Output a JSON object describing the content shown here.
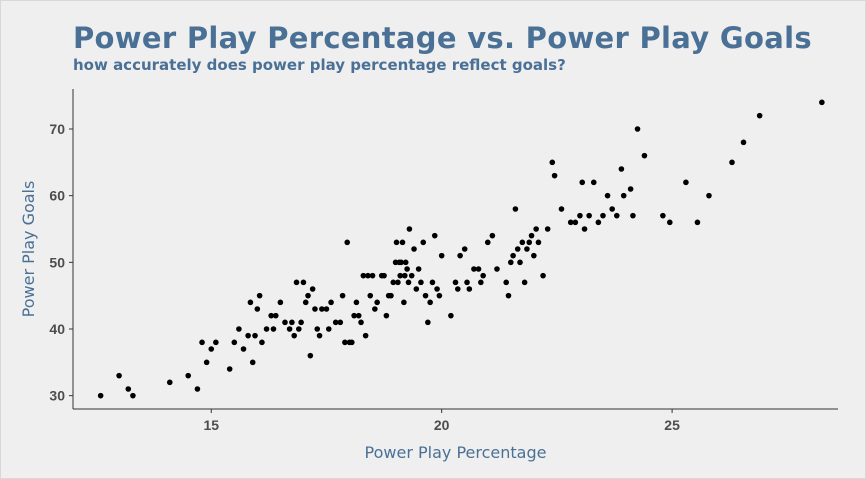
{
  "chart_data": {
    "type": "scatter",
    "title": "Power Play Percentage vs. Power Play Goals",
    "subtitle": "how accurately does power play percentage reflect goals?",
    "xlabel": "Power Play Percentage",
    "ylabel": "Power Play Goals",
    "xlim": [
      12.0,
      28.6
    ],
    "ylim": [
      28.0,
      76.0
    ],
    "xticks": [
      15,
      20,
      25
    ],
    "yticks": [
      30,
      40,
      50,
      60,
      70
    ],
    "grid": false,
    "point_color": "#000000",
    "points": [
      [
        12.6,
        30
      ],
      [
        13.0,
        33
      ],
      [
        13.2,
        31
      ],
      [
        13.3,
        30
      ],
      [
        14.1,
        32
      ],
      [
        14.5,
        33
      ],
      [
        14.7,
        31
      ],
      [
        14.8,
        38
      ],
      [
        14.9,
        35
      ],
      [
        15.0,
        37
      ],
      [
        15.1,
        38
      ],
      [
        15.4,
        34
      ],
      [
        15.5,
        38
      ],
      [
        15.6,
        40
      ],
      [
        15.7,
        37
      ],
      [
        15.8,
        39
      ],
      [
        15.85,
        44
      ],
      [
        15.9,
        35
      ],
      [
        15.95,
        39
      ],
      [
        16.0,
        43
      ],
      [
        16.05,
        45
      ],
      [
        16.1,
        38
      ],
      [
        16.2,
        40
      ],
      [
        16.3,
        42
      ],
      [
        16.35,
        40
      ],
      [
        16.4,
        42
      ],
      [
        16.5,
        44
      ],
      [
        16.6,
        41
      ],
      [
        16.7,
        40
      ],
      [
        16.75,
        41
      ],
      [
        16.8,
        39
      ],
      [
        16.85,
        47
      ],
      [
        16.9,
        40
      ],
      [
        16.95,
        41
      ],
      [
        17.0,
        47
      ],
      [
        17.05,
        44
      ],
      [
        17.1,
        45
      ],
      [
        17.15,
        36
      ],
      [
        17.2,
        46
      ],
      [
        17.25,
        43
      ],
      [
        17.3,
        40
      ],
      [
        17.35,
        39
      ],
      [
        17.4,
        43
      ],
      [
        17.5,
        43
      ],
      [
        17.55,
        40
      ],
      [
        17.6,
        44
      ],
      [
        17.7,
        41
      ],
      [
        17.8,
        41
      ],
      [
        17.85,
        45
      ],
      [
        17.9,
        38
      ],
      [
        17.95,
        53
      ],
      [
        18.0,
        38
      ],
      [
        18.05,
        38
      ],
      [
        18.1,
        42
      ],
      [
        18.15,
        44
      ],
      [
        18.2,
        42
      ],
      [
        18.25,
        41
      ],
      [
        18.3,
        48
      ],
      [
        18.35,
        39
      ],
      [
        18.4,
        48
      ],
      [
        18.45,
        45
      ],
      [
        18.5,
        48
      ],
      [
        18.55,
        43
      ],
      [
        18.6,
        44
      ],
      [
        18.7,
        48
      ],
      [
        18.75,
        48
      ],
      [
        18.8,
        42
      ],
      [
        18.85,
        45
      ],
      [
        18.9,
        45
      ],
      [
        18.95,
        47
      ],
      [
        19.0,
        50
      ],
      [
        19.02,
        53
      ],
      [
        19.05,
        47
      ],
      [
        19.08,
        50
      ],
      [
        19.1,
        48
      ],
      [
        19.12,
        50
      ],
      [
        19.15,
        53
      ],
      [
        19.18,
        44
      ],
      [
        19.2,
        48
      ],
      [
        19.22,
        50
      ],
      [
        19.25,
        49
      ],
      [
        19.28,
        47
      ],
      [
        19.3,
        55
      ],
      [
        19.35,
        48
      ],
      [
        19.4,
        52
      ],
      [
        19.45,
        46
      ],
      [
        19.5,
        49
      ],
      [
        19.55,
        47
      ],
      [
        19.6,
        53
      ],
      [
        19.65,
        45
      ],
      [
        19.7,
        41
      ],
      [
        19.75,
        44
      ],
      [
        19.8,
        47
      ],
      [
        19.85,
        54
      ],
      [
        19.9,
        46
      ],
      [
        19.95,
        45
      ],
      [
        20.0,
        51
      ],
      [
        20.2,
        42
      ],
      [
        20.3,
        47
      ],
      [
        20.35,
        46
      ],
      [
        20.4,
        51
      ],
      [
        20.5,
        52
      ],
      [
        20.55,
        47
      ],
      [
        20.6,
        46
      ],
      [
        20.7,
        49
      ],
      [
        20.8,
        49
      ],
      [
        20.85,
        47
      ],
      [
        20.9,
        48
      ],
      [
        21.0,
        53
      ],
      [
        21.1,
        54
      ],
      [
        21.2,
        49
      ],
      [
        21.4,
        47
      ],
      [
        21.45,
        45
      ],
      [
        21.5,
        50
      ],
      [
        21.55,
        51
      ],
      [
        21.6,
        58
      ],
      [
        21.65,
        52
      ],
      [
        21.7,
        50
      ],
      [
        21.75,
        53
      ],
      [
        21.8,
        47
      ],
      [
        21.85,
        52
      ],
      [
        21.9,
        53
      ],
      [
        21.95,
        54
      ],
      [
        22.0,
        51
      ],
      [
        22.05,
        55
      ],
      [
        22.1,
        53
      ],
      [
        22.2,
        48
      ],
      [
        22.3,
        55
      ],
      [
        22.4,
        65
      ],
      [
        22.45,
        63
      ],
      [
        22.6,
        58
      ],
      [
        22.8,
        56
      ],
      [
        22.9,
        56
      ],
      [
        23.0,
        57
      ],
      [
        23.05,
        62
      ],
      [
        23.1,
        55
      ],
      [
        23.2,
        57
      ],
      [
        23.3,
        62
      ],
      [
        23.4,
        56
      ],
      [
        23.5,
        57
      ],
      [
        23.6,
        60
      ],
      [
        23.7,
        58
      ],
      [
        23.8,
        57
      ],
      [
        23.9,
        64
      ],
      [
        23.95,
        60
      ],
      [
        24.1,
        61
      ],
      [
        24.15,
        57
      ],
      [
        24.25,
        70
      ],
      [
        24.4,
        66
      ],
      [
        24.8,
        57
      ],
      [
        24.95,
        56
      ],
      [
        25.3,
        62
      ],
      [
        25.55,
        56
      ],
      [
        25.8,
        60
      ],
      [
        26.3,
        65
      ],
      [
        26.55,
        68
      ],
      [
        26.9,
        72
      ],
      [
        28.25,
        74
      ]
    ]
  }
}
